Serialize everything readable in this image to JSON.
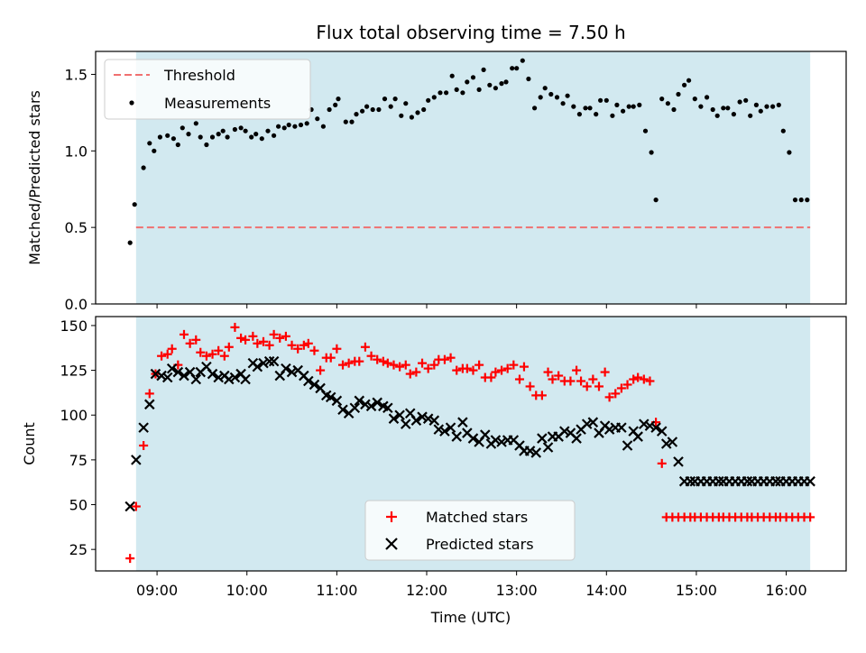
{
  "chart_data": [
    {
      "type": "scatter",
      "title": "Flux total observing time = 7.50 h",
      "ylabel": "Matched/Predicted stars",
      "ylim": [
        0,
        1.65
      ],
      "yticks": [
        0.0,
        0.5,
        1.0,
        1.5
      ],
      "ytick_labels": [
        "0.0",
        "0.5",
        "1.0",
        "1.5"
      ],
      "xlim": [
        "08:19",
        "16:40"
      ],
      "shaded_span": [
        "08:46",
        "16:16"
      ],
      "shade_color": "#d2e9f0",
      "grid": false,
      "legend_position": "top-left",
      "threshold": {
        "name": "Threshold",
        "value": 0.5,
        "color": "#f07070",
        "style": "dashed"
      },
      "series": [
        {
          "name": "Measurements",
          "marker": "dot",
          "color": "#000000",
          "x": [
            "08:42",
            "08:45",
            "08:51",
            "08:55",
            "08:58",
            "09:02",
            "09:07",
            "09:11",
            "09:14",
            "09:17",
            "09:21",
            "09:26",
            "09:29",
            "09:33",
            "09:37",
            "09:41",
            "09:44",
            "09:47",
            "09:52",
            "09:56",
            "09:59",
            "10:03",
            "10:06",
            "10:10",
            "10:14",
            "10:18",
            "10:21",
            "10:25",
            "10:28",
            "10:32",
            "10:36",
            "10:40",
            "10:43",
            "10:47",
            "10:51",
            "10:55",
            "10:59",
            "11:01",
            "11:06",
            "11:10",
            "11:13",
            "11:17",
            "11:20",
            "11:24",
            "11:28",
            "11:32",
            "11:36",
            "11:39",
            "11:43",
            "11:46",
            "11:50",
            "11:54",
            "11:58",
            "12:01",
            "12:05",
            "12:09",
            "12:13",
            "12:17",
            "12:20",
            "12:24",
            "12:27",
            "12:31",
            "12:35",
            "12:38",
            "12:42",
            "12:46",
            "12:50",
            "12:53",
            "12:57",
            "13:00",
            "13:04",
            "13:08",
            "13:12",
            "13:16",
            "13:19",
            "13:23",
            "13:27",
            "13:31",
            "13:34",
            "13:38",
            "13:42",
            "13:46",
            "13:49",
            "13:53",
            "13:56",
            "14:00",
            "14:04",
            "14:07",
            "14:11",
            "14:15",
            "14:18",
            "14:22",
            "14:26",
            "14:30",
            "14:33",
            "14:37",
            "14:41",
            "14:45",
            "14:48",
            "14:52",
            "14:55",
            "14:59",
            "15:03",
            "15:07",
            "15:11",
            "15:14",
            "15:18",
            "15:21",
            "15:25",
            "15:29",
            "15:33",
            "15:36",
            "15:40",
            "15:43",
            "15:47",
            "15:51",
            "15:55",
            "15:58",
            "16:02",
            "16:06",
            "16:10",
            "16:14"
          ],
          "y": [
            0.4,
            0.65,
            0.89,
            1.05,
            1.0,
            1.09,
            1.1,
            1.08,
            1.04,
            1.15,
            1.11,
            1.18,
            1.09,
            1.04,
            1.09,
            1.11,
            1.13,
            1.09,
            1.14,
            1.15,
            1.13,
            1.09,
            1.11,
            1.08,
            1.13,
            1.1,
            1.16,
            1.15,
            1.17,
            1.16,
            1.17,
            1.18,
            1.27,
            1.21,
            1.16,
            1.27,
            1.3,
            1.34,
            1.19,
            1.19,
            1.24,
            1.26,
            1.29,
            1.27,
            1.27,
            1.34,
            1.29,
            1.34,
            1.23,
            1.31,
            1.22,
            1.25,
            1.27,
            1.33,
            1.35,
            1.38,
            1.38,
            1.49,
            1.4,
            1.38,
            1.45,
            1.48,
            1.4,
            1.53,
            1.43,
            1.41,
            1.44,
            1.45,
            1.54,
            1.54,
            1.59,
            1.47,
            1.28,
            1.35,
            1.41,
            1.37,
            1.35,
            1.31,
            1.36,
            1.29,
            1.24,
            1.28,
            1.28,
            1.24,
            1.33,
            1.33,
            1.23,
            1.3,
            1.26,
            1.29,
            1.29,
            1.3,
            1.13,
            0.99,
            0.68,
            1.34,
            1.31,
            1.27,
            1.37,
            1.43,
            1.46,
            1.34,
            1.29,
            1.35,
            1.27,
            1.23,
            1.28,
            1.28,
            1.24,
            1.32,
            1.33,
            1.23,
            1.3,
            1.26,
            1.29,
            1.29,
            1.3,
            1.13,
            0.99,
            0.68,
            0.68,
            0.68
          ]
        }
      ]
    },
    {
      "type": "scatter",
      "xlabel": "Time (UTC)",
      "ylabel": "Count",
      "ylim": [
        13,
        155
      ],
      "yticks": [
        25,
        50,
        75,
        100,
        125,
        150
      ],
      "ytick_labels": [
        "25",
        "50",
        "75",
        "100",
        "125",
        "150"
      ],
      "xlim": [
        "08:19",
        "16:40"
      ],
      "xticks": [
        "09:00",
        "10:00",
        "11:00",
        "12:00",
        "13:00",
        "14:00",
        "15:00",
        "16:00"
      ],
      "shaded_span": [
        "08:46",
        "16:16"
      ],
      "shade_color": "#d2e9f0",
      "grid": false,
      "legend_position": "bottom-center",
      "series": [
        {
          "name": "Matched stars",
          "marker": "plus",
          "color": "#ff0000",
          "x": [
            "08:42",
            "08:46",
            "08:51",
            "08:55",
            "08:59",
            "09:03",
            "09:07",
            "09:10",
            "09:14",
            "09:18",
            "09:22",
            "09:26",
            "09:29",
            "09:33",
            "09:37",
            "09:41",
            "09:45",
            "09:48",
            "09:52",
            "09:56",
            "09:59",
            "10:04",
            "10:07",
            "10:11",
            "10:15",
            "10:18",
            "10:22",
            "10:26",
            "10:30",
            "10:34",
            "10:38",
            "10:41",
            "10:45",
            "10:49",
            "10:53",
            "10:56",
            "11:00",
            "11:04",
            "11:08",
            "11:12",
            "11:15",
            "11:19",
            "11:23",
            "11:27",
            "11:31",
            "11:34",
            "11:38",
            "11:42",
            "11:46",
            "11:49",
            "11:53",
            "11:57",
            "12:01",
            "12:05",
            "12:08",
            "12:12",
            "12:16",
            "12:20",
            "12:24",
            "12:27",
            "12:31",
            "12:35",
            "12:39",
            "12:43",
            "12:46",
            "12:50",
            "12:54",
            "12:58",
            "13:02",
            "13:05",
            "13:09",
            "13:13",
            "13:17",
            "13:21",
            "13:24",
            "13:28",
            "13:32",
            "13:36",
            "13:40",
            "13:43",
            "13:47",
            "13:51",
            "13:55",
            "13:59",
            "14:02",
            "14:06",
            "14:10",
            "14:14",
            "14:18",
            "14:21",
            "14:25",
            "14:29",
            "14:33",
            "14:37",
            "14:40",
            "14:44",
            "14:48",
            "14:52",
            "14:56",
            "14:59",
            "15:03",
            "15:07",
            "15:11",
            "15:15",
            "15:18",
            "15:22",
            "15:26",
            "15:30",
            "15:34",
            "15:37",
            "15:41",
            "15:45",
            "15:49",
            "15:53",
            "15:56",
            "16:00",
            "16:04",
            "16:08",
            "16:12",
            "16:16"
          ],
          "y": [
            20,
            49,
            83,
            112,
            123,
            133,
            134,
            137,
            128,
            145,
            140,
            142,
            135,
            133,
            134,
            136,
            133,
            138,
            149,
            143,
            142,
            144,
            140,
            141,
            139,
            145,
            143,
            144,
            139,
            137,
            139,
            140,
            136,
            125,
            132,
            132,
            137,
            128,
            129,
            130,
            130,
            138,
            133,
            131,
            130,
            129,
            128,
            127,
            128,
            123,
            124,
            129,
            126,
            128,
            131,
            131,
            132,
            125,
            126,
            126,
            125,
            128,
            121,
            121,
            124,
            125,
            126,
            128,
            120,
            127,
            116,
            111,
            111,
            124,
            120,
            122,
            119,
            119,
            125,
            119,
            116,
            120,
            116,
            124,
            110,
            112,
            115,
            117,
            120,
            121,
            120,
            119,
            96,
            73,
            43,
            43,
            43,
            43,
            43,
            43,
            43,
            43,
            43,
            43,
            43,
            43,
            43,
            43,
            43,
            43,
            43,
            43,
            43,
            43,
            43,
            43,
            43,
            43,
            43,
            43
          ]
        },
        {
          "name": "Predicted stars",
          "marker": "x",
          "color": "#000000",
          "x": [
            "08:42",
            "08:46",
            "08:51",
            "08:55",
            "08:59",
            "09:03",
            "09:07",
            "09:10",
            "09:14",
            "09:18",
            "09:22",
            "09:26",
            "09:29",
            "09:33",
            "09:37",
            "09:41",
            "09:45",
            "09:48",
            "09:52",
            "09:56",
            "09:59",
            "10:04",
            "10:07",
            "10:11",
            "10:15",
            "10:18",
            "10:22",
            "10:26",
            "10:30",
            "10:34",
            "10:38",
            "10:41",
            "10:45",
            "10:49",
            "10:53",
            "10:56",
            "11:00",
            "11:04",
            "11:08",
            "11:12",
            "11:15",
            "11:19",
            "11:23",
            "11:27",
            "11:31",
            "11:34",
            "11:38",
            "11:42",
            "11:46",
            "11:49",
            "11:53",
            "11:57",
            "12:01",
            "12:05",
            "12:08",
            "12:12",
            "12:16",
            "12:20",
            "12:24",
            "12:27",
            "12:31",
            "12:35",
            "12:39",
            "12:43",
            "12:46",
            "12:50",
            "12:54",
            "12:58",
            "13:02",
            "13:05",
            "13:09",
            "13:13",
            "13:17",
            "13:21",
            "13:24",
            "13:28",
            "13:32",
            "13:36",
            "13:40",
            "13:43",
            "13:47",
            "13:51",
            "13:55",
            "13:59",
            "14:02",
            "14:06",
            "14:10",
            "14:14",
            "14:18",
            "14:21",
            "14:25",
            "14:29",
            "14:33",
            "14:37",
            "14:40",
            "14:44",
            "14:48",
            "14:52",
            "14:56",
            "14:59",
            "15:03",
            "15:07",
            "15:11",
            "15:15",
            "15:18",
            "15:22",
            "15:26",
            "15:30",
            "15:34",
            "15:37",
            "15:41",
            "15:45",
            "15:49",
            "15:53",
            "15:56",
            "16:00",
            "16:04",
            "16:08",
            "16:12",
            "16:16"
          ],
          "y": [
            49,
            75,
            93,
            106,
            123,
            122,
            121,
            126,
            124,
            122,
            124,
            120,
            124,
            127,
            123,
            121,
            122,
            120,
            121,
            123,
            120,
            129,
            127,
            129,
            130,
            130,
            122,
            126,
            124,
            125,
            122,
            119,
            117,
            115,
            111,
            110,
            108,
            103,
            101,
            104,
            108,
            106,
            105,
            107,
            105,
            104,
            98,
            100,
            95,
            101,
            97,
            99,
            98,
            97,
            92,
            91,
            93,
            88,
            96,
            90,
            87,
            85,
            89,
            84,
            86,
            85,
            86,
            86,
            83,
            80,
            80,
            79,
            87,
            82,
            88,
            88,
            91,
            90,
            87,
            92,
            95,
            96,
            90,
            94,
            92,
            93,
            93,
            83,
            91,
            88,
            95,
            94,
            93,
            91,
            84,
            85,
            74,
            63,
            63,
            63,
            63,
            63,
            63,
            63,
            63,
            63,
            63,
            63,
            63,
            63,
            63,
            63,
            63,
            63,
            63,
            63,
            63,
            63,
            63,
            63
          ]
        }
      ]
    }
  ]
}
